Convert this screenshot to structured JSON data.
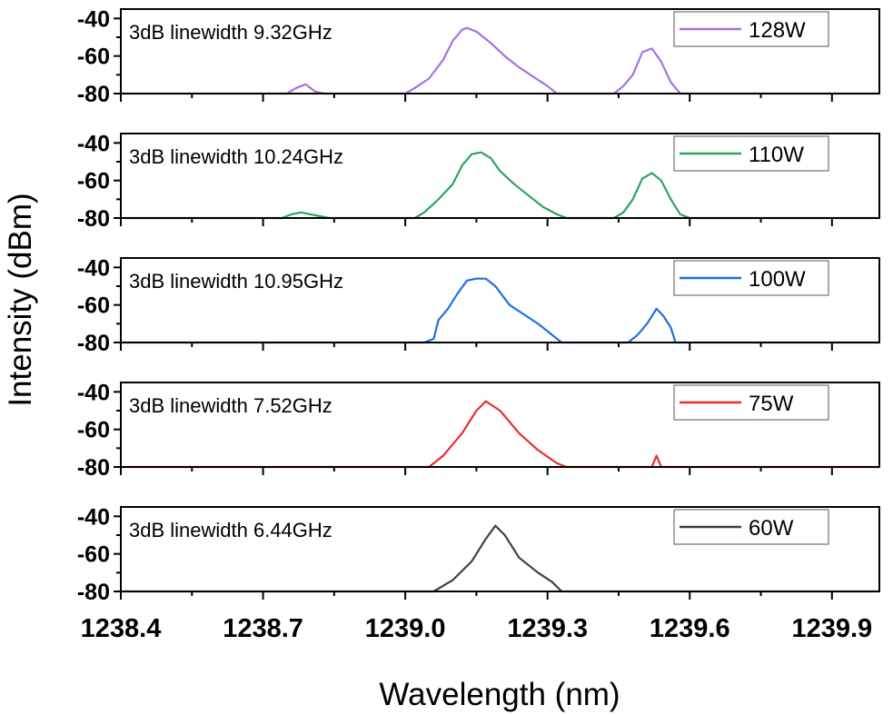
{
  "chart_data": [
    {
      "type": "line",
      "annotation": "3dB linewidth 9.32GHz",
      "series": [
        {
          "name": "128W",
          "color": "#a970e0",
          "points": [
            [
              1238.4,
              -80
            ],
            [
              1238.75,
              -80
            ],
            [
              1238.77,
              -77
            ],
            [
              1238.79,
              -75
            ],
            [
              1238.81,
              -79
            ],
            [
              1238.83,
              -80
            ],
            [
              1239.0,
              -80
            ],
            [
              1239.02,
              -77
            ],
            [
              1239.05,
              -72
            ],
            [
              1239.08,
              -62
            ],
            [
              1239.1,
              -52
            ],
            [
              1239.12,
              -46
            ],
            [
              1239.13,
              -45
            ],
            [
              1239.15,
              -47
            ],
            [
              1239.18,
              -53
            ],
            [
              1239.21,
              -60
            ],
            [
              1239.24,
              -66
            ],
            [
              1239.27,
              -71
            ],
            [
              1239.3,
              -76
            ],
            [
              1239.32,
              -80
            ],
            [
              1239.44,
              -80
            ],
            [
              1239.46,
              -76
            ],
            [
              1239.48,
              -70
            ],
            [
              1239.5,
              -58
            ],
            [
              1239.52,
              -56
            ],
            [
              1239.54,
              -63
            ],
            [
              1239.56,
              -74
            ],
            [
              1239.58,
              -80
            ],
            [
              1240.0,
              -80
            ]
          ]
        }
      ]
    },
    {
      "type": "line",
      "annotation": "3dB linewidth 10.24GHz",
      "series": [
        {
          "name": "110W",
          "color": "#2ea35e",
          "points": [
            [
              1238.4,
              -80
            ],
            [
              1238.74,
              -80
            ],
            [
              1238.76,
              -78
            ],
            [
              1238.78,
              -77
            ],
            [
              1238.8,
              -78
            ],
            [
              1238.84,
              -80
            ],
            [
              1239.02,
              -80
            ],
            [
              1239.04,
              -77
            ],
            [
              1239.07,
              -70
            ],
            [
              1239.1,
              -62
            ],
            [
              1239.12,
              -52
            ],
            [
              1239.14,
              -46
            ],
            [
              1239.16,
              -45
            ],
            [
              1239.18,
              -48
            ],
            [
              1239.2,
              -55
            ],
            [
              1239.23,
              -62
            ],
            [
              1239.26,
              -68
            ],
            [
              1239.29,
              -74
            ],
            [
              1239.32,
              -78
            ],
            [
              1239.34,
              -80
            ],
            [
              1239.44,
              -80
            ],
            [
              1239.46,
              -77
            ],
            [
              1239.48,
              -70
            ],
            [
              1239.5,
              -59
            ],
            [
              1239.52,
              -56
            ],
            [
              1239.54,
              -60
            ],
            [
              1239.56,
              -70
            ],
            [
              1239.58,
              -78
            ],
            [
              1239.6,
              -80
            ],
            [
              1240.0,
              -80
            ]
          ]
        }
      ]
    },
    {
      "type": "line",
      "annotation": "3dB linewidth 10.95GHz",
      "series": [
        {
          "name": "100W",
          "color": "#1f6fe0",
          "points": [
            [
              1238.4,
              -80
            ],
            [
              1239.04,
              -80
            ],
            [
              1239.06,
              -78
            ],
            [
              1239.07,
              -68
            ],
            [
              1239.09,
              -62
            ],
            [
              1239.11,
              -54
            ],
            [
              1239.13,
              -47
            ],
            [
              1239.15,
              -46
            ],
            [
              1239.17,
              -46
            ],
            [
              1239.19,
              -50
            ],
            [
              1239.22,
              -60
            ],
            [
              1239.25,
              -65
            ],
            [
              1239.28,
              -70
            ],
            [
              1239.31,
              -76
            ],
            [
              1239.33,
              -80
            ],
            [
              1239.47,
              -80
            ],
            [
              1239.49,
              -76
            ],
            [
              1239.51,
              -70
            ],
            [
              1239.53,
              -62
            ],
            [
              1239.545,
              -66
            ],
            [
              1239.56,
              -72
            ],
            [
              1239.57,
              -80
            ],
            [
              1240.0,
              -80
            ]
          ]
        }
      ]
    },
    {
      "type": "line",
      "annotation": "3dB linewidth 7.52GHz",
      "series": [
        {
          "name": "75W",
          "color": "#e8302c",
          "points": [
            [
              1238.4,
              -80
            ],
            [
              1239.05,
              -80
            ],
            [
              1239.08,
              -74
            ],
            [
              1239.12,
              -62
            ],
            [
              1239.15,
              -50
            ],
            [
              1239.17,
              -45
            ],
            [
              1239.2,
              -50
            ],
            [
              1239.24,
              -62
            ],
            [
              1239.28,
              -71
            ],
            [
              1239.32,
              -78
            ],
            [
              1239.34,
              -80
            ],
            [
              1239.52,
              -80
            ],
            [
              1239.53,
              -74
            ],
            [
              1239.54,
              -80
            ],
            [
              1240.0,
              -80
            ]
          ]
        }
      ]
    },
    {
      "type": "line",
      "annotation": "3dB linewidth 6.44GHz",
      "series": [
        {
          "name": "60W",
          "color": "#404040",
          "points": [
            [
              1238.4,
              -80
            ],
            [
              1239.06,
              -80
            ],
            [
              1239.1,
              -74
            ],
            [
              1239.14,
              -64
            ],
            [
              1239.17,
              -52
            ],
            [
              1239.19,
              -45
            ],
            [
              1239.21,
              -50
            ],
            [
              1239.24,
              -62
            ],
            [
              1239.28,
              -70
            ],
            [
              1239.31,
              -75
            ],
            [
              1239.33,
              -80
            ],
            [
              1240.0,
              -80
            ]
          ]
        }
      ]
    }
  ],
  "shared": {
    "xlabel": "Wavelength (nm)",
    "ylabel": "Intensity (dBm)",
    "xlim": [
      1238.4,
      1240.0
    ],
    "ylim": [
      -80,
      -35
    ],
    "xticks": [
      "1238.4",
      "1238.7",
      "1239.0",
      "1239.3",
      "1239.6",
      "1239.9"
    ],
    "yticks": [
      "-40",
      "-60",
      "-80"
    ],
    "grid": false,
    "legend_placement": "top-right"
  }
}
